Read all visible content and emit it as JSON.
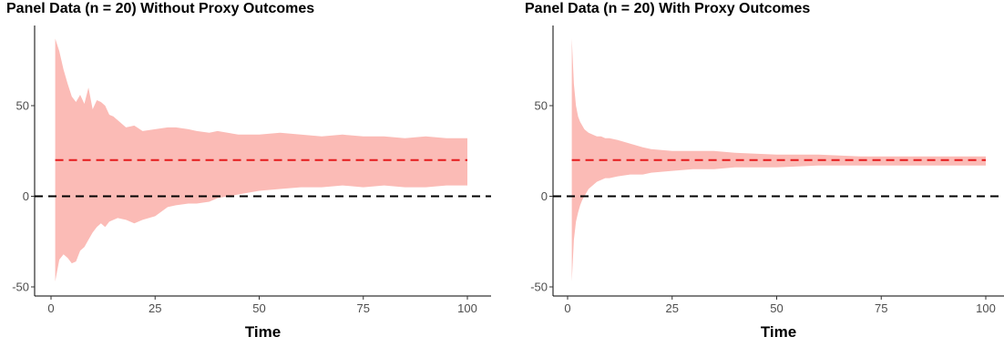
{
  "chart_data": [
    {
      "type": "area",
      "title": "Panel Data (n = 20) Without Proxy Outcomes",
      "xlabel": "Time",
      "ylabel": "",
      "xlim": [
        -1,
        104
      ],
      "ylim": [
        -53,
        95
      ],
      "x_ticks": [
        0,
        25,
        50,
        75,
        100
      ],
      "y_ticks": [
        -50,
        0,
        50
      ],
      "grid": false,
      "band_color": "#F8766D",
      "band_fill": "#FBBBB6",
      "reference_lines": [
        {
          "y": 20,
          "color": "#E41A1C",
          "style": "dashed"
        },
        {
          "y": 0,
          "color": "#000000",
          "style": "dashed"
        }
      ],
      "band": {
        "x": [
          1,
          2,
          3,
          4,
          5,
          6,
          7,
          8,
          9,
          10,
          11,
          12,
          13,
          14,
          15,
          16,
          18,
          20,
          22,
          25,
          28,
          30,
          33,
          35,
          38,
          40,
          45,
          50,
          55,
          60,
          65,
          70,
          75,
          80,
          85,
          90,
          95,
          100
        ],
        "upper": [
          87,
          80,
          70,
          62,
          55,
          52,
          56,
          51,
          60,
          48,
          53,
          52,
          50,
          45,
          44,
          42,
          38,
          39,
          36,
          37,
          38,
          38,
          37,
          36,
          35,
          36,
          34,
          34,
          35,
          34,
          33,
          34,
          33,
          33,
          32,
          33,
          32,
          32
        ],
        "lower": [
          -47,
          -35,
          -32,
          -34,
          -37,
          -36,
          -30,
          -28,
          -24,
          -20,
          -17,
          -15,
          -17,
          -14,
          -13,
          -12,
          -13,
          -15,
          -13,
          -11,
          -6,
          -5,
          -4,
          -4,
          -3,
          -1,
          1,
          3,
          4,
          5,
          5,
          6,
          5,
          6,
          5,
          5,
          6,
          6
        ]
      }
    },
    {
      "type": "area",
      "title": "Panel Data (n = 20) With Proxy Outcomes",
      "xlabel": "Time",
      "ylabel": "",
      "xlim": [
        -1,
        104
      ],
      "ylim": [
        -53,
        95
      ],
      "x_ticks": [
        0,
        25,
        50,
        75,
        100
      ],
      "y_ticks": [
        -50,
        0,
        50
      ],
      "grid": false,
      "band_color": "#F8766D",
      "band_fill": "#FBBBB6",
      "reference_lines": [
        {
          "y": 20,
          "color": "#E41A1C",
          "style": "dashed"
        },
        {
          "y": 0,
          "color": "#000000",
          "style": "dashed"
        }
      ],
      "band": {
        "x": [
          1,
          1.5,
          2,
          2.5,
          3,
          3.5,
          4,
          4.5,
          5,
          6,
          7,
          8,
          9,
          10,
          12,
          15,
          18,
          20,
          25,
          30,
          35,
          40,
          50,
          60,
          70,
          80,
          90,
          100
        ],
        "upper": [
          87,
          62,
          50,
          44,
          41,
          39,
          37,
          36,
          35,
          34,
          33,
          33,
          32,
          32,
          31,
          29,
          27,
          26,
          25,
          25,
          25,
          24,
          23,
          23,
          22,
          22,
          22,
          22
        ],
        "lower": [
          -47,
          -24,
          -14,
          -9,
          -5,
          -2,
          0,
          2,
          4,
          6,
          8,
          9,
          10,
          10,
          11,
          12,
          12,
          13,
          14,
          15,
          15,
          16,
          16,
          17,
          17,
          17,
          17,
          17
        ]
      }
    }
  ]
}
